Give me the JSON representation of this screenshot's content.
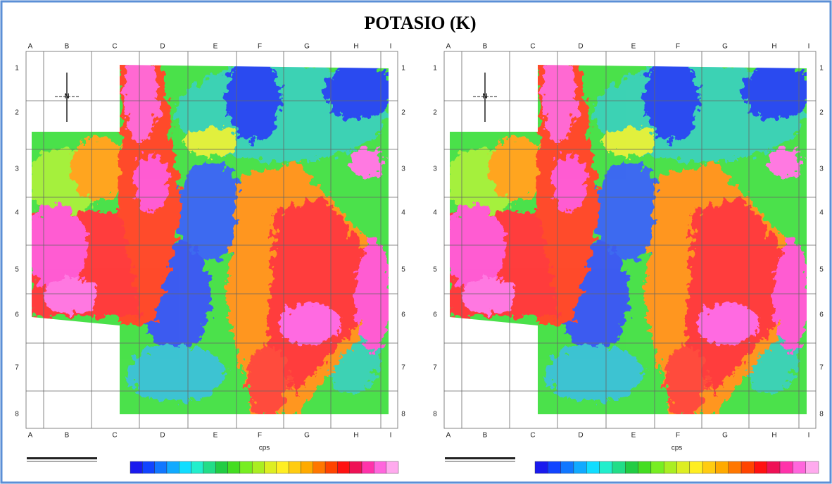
{
  "title": "POTASIO (K)",
  "maps": [
    {
      "columns": [
        "A",
        "B",
        "C",
        "D",
        "E",
        "F",
        "G",
        "H",
        "I"
      ],
      "rows": [
        "1",
        "2",
        "3",
        "4",
        "5",
        "6",
        "7",
        "8"
      ],
      "north": "N",
      "colorbar_label": "cps"
    },
    {
      "columns": [
        "A",
        "B",
        "C",
        "D",
        "E",
        "F",
        "G",
        "H",
        "I"
      ],
      "rows": [
        "1",
        "2",
        "3",
        "4",
        "5",
        "6",
        "7",
        "8"
      ],
      "north": "N",
      "colorbar_label": "cps"
    }
  ]
}
